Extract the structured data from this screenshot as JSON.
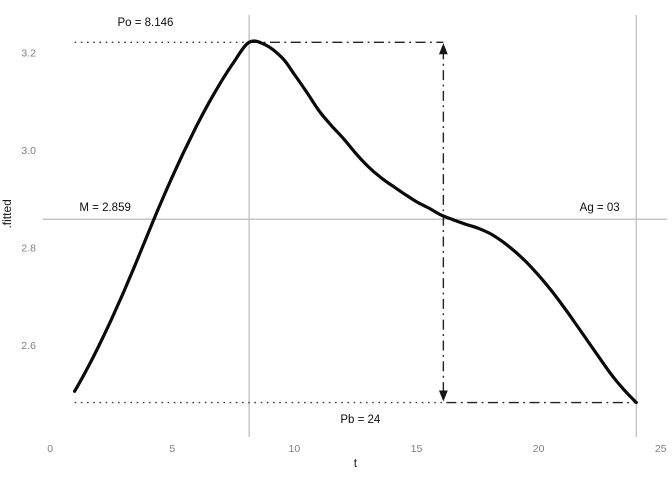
{
  "chart_data": {
    "type": "line",
    "title": "",
    "xlabel": "t",
    "ylabel": ".fitted",
    "xlim": [
      0,
      25
    ],
    "ylim": [
      2.44,
      3.28
    ],
    "grid": "off",
    "legend": "none",
    "x_ticks": [
      0,
      5,
      10,
      15,
      20,
      25
    ],
    "y_ticks": [
      "2.6",
      "2.8",
      "3.0",
      "3.2"
    ],
    "series": [
      {
        "name": "fitted",
        "x": [
          1,
          1.5,
          2,
          2.5,
          3,
          3.5,
          4,
          4.5,
          5,
          5.5,
          6,
          6.5,
          7,
          7.5,
          8.146,
          8.8,
          9.5,
          10,
          10.5,
          11,
          11.5,
          12,
          12.5,
          13,
          13.5,
          14,
          14.5,
          15,
          15.5,
          16,
          16.5,
          17,
          17.5,
          18,
          18.5,
          19,
          19.5,
          20,
          20.5,
          21,
          21.5,
          22,
          22.5,
          23,
          23.5,
          24
        ],
        "y": [
          2.506,
          2.551,
          2.6,
          2.653,
          2.709,
          2.768,
          2.829,
          2.889,
          2.946,
          3.0,
          3.051,
          3.098,
          3.141,
          3.18,
          3.222,
          3.217,
          3.19,
          3.156,
          3.12,
          3.082,
          3.052,
          3.025,
          2.995,
          2.968,
          2.946,
          2.928,
          2.911,
          2.895,
          2.882,
          2.868,
          2.858,
          2.849,
          2.841,
          2.83,
          2.814,
          2.794,
          2.771,
          2.744,
          2.714,
          2.681,
          2.646,
          2.61,
          2.574,
          2.539,
          2.509,
          2.483
        ]
      }
    ],
    "reference_lines": {
      "vertical_gray_t": [
        8.146,
        24
      ],
      "horizontal_gray_v": 2.859
    },
    "guides": {
      "peak_value": 3.222,
      "base_value": 2.483,
      "curve_start_t": 1,
      "peak_t": 8.146,
      "arrow_t": 16.1,
      "end_t": 24
    },
    "annotations": [
      {
        "id": "po",
        "text": "Po = 8.146",
        "t": 3.9,
        "v": 3.255
      },
      {
        "id": "m",
        "text": "M = 2.859",
        "t": 2.25,
        "v": 2.876
      },
      {
        "id": "ag",
        "text": "Ag = 03",
        "t": 22.5,
        "v": 2.876
      },
      {
        "id": "pb",
        "text": "Pb = 24",
        "t": 12.7,
        "v": 2.441
      }
    ],
    "colors": {
      "curve": "#0a0a0a",
      "reference": "#c4c4c4",
      "guide": "#222222",
      "tick_text": "#808080",
      "annotation_text": "#0d0d0d"
    }
  }
}
